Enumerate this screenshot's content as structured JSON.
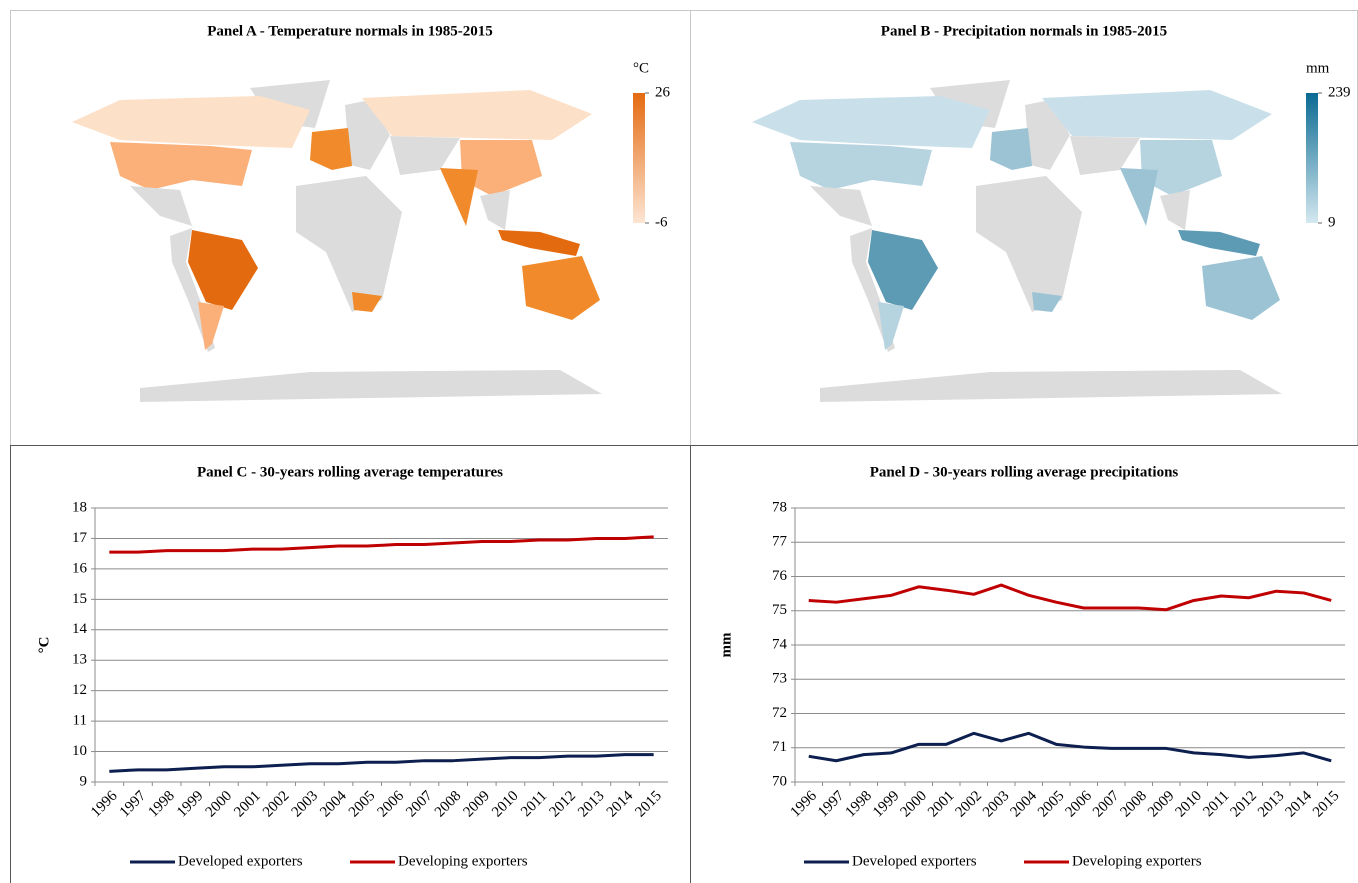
{
  "chart_data": [
    {
      "type": "map",
      "title": "Panel A - Temperature normals in 1985-2015",
      "legend": {
        "title": "°C",
        "max": 26,
        "min": -6,
        "colors": [
          "#fde5d3",
          "#e46a10"
        ]
      }
    },
    {
      "type": "map",
      "title": "Panel B - Precipitation normals in 1985-2015",
      "legend": {
        "title": "mm",
        "max": 239,
        "min": 9,
        "colors": [
          "#d4e8f0",
          "#0a6a92"
        ]
      }
    },
    {
      "type": "line",
      "title": "Panel C - 30-years rolling average temperatures",
      "y_label": "°C",
      "categories": [
        "1996",
        "1997",
        "1998",
        "1999",
        "2000",
        "2001",
        "2002",
        "2003",
        "2004",
        "2005",
        "2006",
        "2007",
        "2008",
        "2009",
        "2010",
        "2011",
        "2012",
        "2013",
        "2014",
        "2015"
      ],
      "ylim": [
        9,
        18
      ],
      "yticks": [
        9,
        10,
        11,
        12,
        13,
        14,
        15,
        16,
        17,
        18
      ],
      "grid": true,
      "legend": "bottom",
      "series": [
        {
          "name": "Developed exporters",
          "color": "#0d1f4f",
          "values": [
            9.35,
            9.4,
            9.4,
            9.45,
            9.5,
            9.5,
            9.55,
            9.6,
            9.6,
            9.65,
            9.65,
            9.7,
            9.7,
            9.75,
            9.8,
            9.8,
            9.85,
            9.85,
            9.9,
            9.9
          ]
        },
        {
          "name": "Developing exporters",
          "color": "#c00000",
          "values": [
            16.55,
            16.55,
            16.6,
            16.6,
            16.6,
            16.65,
            16.65,
            16.7,
            16.75,
            16.75,
            16.8,
            16.8,
            16.85,
            16.9,
            16.9,
            16.95,
            16.95,
            17.0,
            17.0,
            17.05
          ]
        }
      ]
    },
    {
      "type": "line",
      "title": "Panel D - 30-years rolling average precipitations",
      "y_label": "mm",
      "categories": [
        "1996",
        "1997",
        "1998",
        "1999",
        "2000",
        "2001",
        "2002",
        "2003",
        "2004",
        "2005",
        "2006",
        "2007",
        "2008",
        "2009",
        "2010",
        "2011",
        "2012",
        "2013",
        "2014",
        "2015"
      ],
      "ylim": [
        70,
        78
      ],
      "yticks": [
        70,
        71,
        72,
        73,
        74,
        75,
        76,
        77,
        78
      ],
      "grid": true,
      "legend": "bottom",
      "series": [
        {
          "name": "Developed exporters",
          "color": "#0d1f4f",
          "values": [
            70.75,
            70.62,
            70.8,
            70.85,
            71.1,
            71.1,
            71.42,
            71.2,
            71.42,
            71.1,
            71.02,
            70.98,
            70.98,
            70.98,
            70.85,
            70.8,
            70.72,
            70.77,
            70.85,
            70.62
          ]
        },
        {
          "name": "Developing exporters",
          "color": "#c00000",
          "values": [
            75.3,
            75.25,
            75.35,
            75.45,
            75.7,
            75.6,
            75.48,
            75.75,
            75.45,
            75.25,
            75.08,
            75.08,
            75.08,
            75.03,
            75.3,
            75.43,
            75.38,
            75.57,
            75.52,
            75.3
          ]
        }
      ]
    }
  ]
}
